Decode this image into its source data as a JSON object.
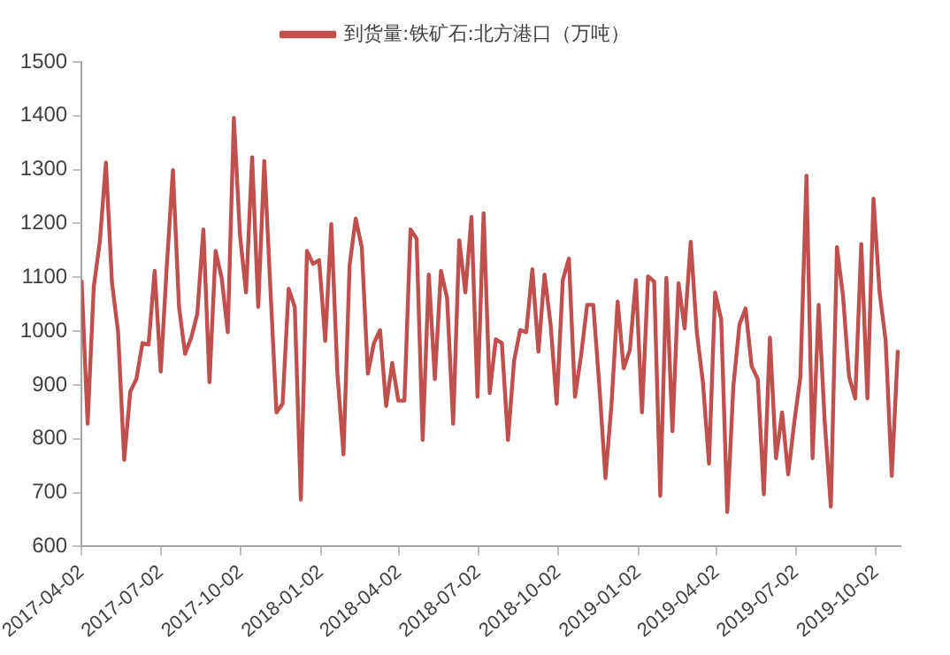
{
  "chart_data": {
    "type": "line",
    "legend": "top",
    "x": [
      "2017-04-02",
      "2017-04-09",
      "2017-04-16",
      "2017-04-23",
      "2017-04-30",
      "2017-05-07",
      "2017-05-14",
      "2017-05-21",
      "2017-05-28",
      "2017-06-04",
      "2017-06-11",
      "2017-06-18",
      "2017-06-25",
      "2017-07-02",
      "2017-07-09",
      "2017-07-16",
      "2017-07-23",
      "2017-07-30",
      "2017-08-06",
      "2017-08-13",
      "2017-08-20",
      "2017-08-27",
      "2017-09-03",
      "2017-09-10",
      "2017-09-17",
      "2017-09-24",
      "2017-10-01",
      "2017-10-08",
      "2017-10-15",
      "2017-10-22",
      "2017-10-29",
      "2017-11-05",
      "2017-11-12",
      "2017-11-19",
      "2017-11-26",
      "2017-12-03",
      "2017-12-10",
      "2017-12-17",
      "2017-12-24",
      "2017-12-31",
      "2018-01-07",
      "2018-01-14",
      "2018-01-21",
      "2018-01-28",
      "2018-02-04",
      "2018-02-11",
      "2018-02-18",
      "2018-02-25",
      "2018-03-04",
      "2018-03-11",
      "2018-03-18",
      "2018-03-25",
      "2018-04-01",
      "2018-04-08",
      "2018-04-15",
      "2018-04-22",
      "2018-04-29",
      "2018-05-06",
      "2018-05-13",
      "2018-05-20",
      "2018-05-27",
      "2018-06-03",
      "2018-06-10",
      "2018-06-17",
      "2018-06-24",
      "2018-07-01",
      "2018-07-08",
      "2018-07-15",
      "2018-07-22",
      "2018-07-29",
      "2018-08-05",
      "2018-08-12",
      "2018-08-19",
      "2018-08-26",
      "2018-09-02",
      "2018-09-09",
      "2018-09-16",
      "2018-09-23",
      "2018-09-30",
      "2018-10-07",
      "2018-10-14",
      "2018-10-21",
      "2018-10-28",
      "2018-11-04",
      "2018-11-11",
      "2018-11-18",
      "2018-11-25",
      "2018-12-02",
      "2018-12-09",
      "2018-12-16",
      "2018-12-23",
      "2018-12-30",
      "2019-01-06",
      "2019-01-13",
      "2019-01-20",
      "2019-01-27",
      "2019-02-03",
      "2019-02-10",
      "2019-02-17",
      "2019-02-24",
      "2019-03-03",
      "2019-03-10",
      "2019-03-17",
      "2019-03-24",
      "2019-03-31",
      "2019-04-07",
      "2019-04-14",
      "2019-04-21",
      "2019-04-28",
      "2019-05-05",
      "2019-05-12",
      "2019-05-19",
      "2019-05-26",
      "2019-06-02",
      "2019-06-09",
      "2019-06-16",
      "2019-06-23",
      "2019-06-30",
      "2019-07-07",
      "2019-07-14",
      "2019-07-21",
      "2019-07-28",
      "2019-08-04",
      "2019-08-11",
      "2019-08-18",
      "2019-08-25",
      "2019-09-01",
      "2019-09-08",
      "2019-09-15",
      "2019-09-22",
      "2019-09-29",
      "2019-10-06",
      "2019-10-13",
      "2019-10-20",
      "2019-10-27"
    ],
    "series": [
      {
        "name": "到货量:铁矿石:北方港口（万吨）",
        "color": "#c0504d",
        "values": [
          1095,
          828,
          1082,
          1166,
          1313,
          1089,
          998,
          761,
          888,
          911,
          978,
          975,
          1112,
          925,
          1122,
          1299,
          1045,
          958,
          988,
          1032,
          1189,
          905,
          1149,
          1099,
          998,
          1396,
          1179,
          1072,
          1323,
          1045,
          1316,
          1079,
          849,
          865,
          1079,
          1045,
          687,
          1149,
          1125,
          1132,
          982,
          1199,
          921,
          771,
          1122,
          1209,
          1156,
          921,
          978,
          1002,
          861,
          941,
          871,
          871,
          1189,
          1172,
          798,
          1105,
          911,
          1112,
          1062,
          828,
          1169,
          1072,
          1212,
          878,
          1219,
          885,
          985,
          978,
          798,
          945,
          1002,
          998,
          1115,
          962,
          1105,
          1012,
          865,
          1095,
          1135,
          878,
          955,
          1049,
          1049,
          898,
          727,
          865,
          1055,
          931,
          965,
          1095,
          849,
          1102,
          1092,
          694,
          1099,
          814,
          1089,
          1005,
          1166,
          998,
          905,
          754,
          1072,
          1022,
          664,
          898,
          1012,
          1042,
          935,
          911,
          697,
          988,
          764,
          849,
          734,
          831,
          915,
          1289,
          764,
          1049,
          831,
          674,
          1156,
          1065,
          915,
          875,
          1162,
          875,
          1246,
          1072,
          982,
          731,
          965
        ]
      }
    ],
    "xlim": [
      "2017-04-02",
      "2019-10-30"
    ],
    "xticks": [
      "2017-04-02",
      "2017-07-02",
      "2017-10-02",
      "2018-01-02",
      "2018-04-02",
      "2018-07-02",
      "2018-10-02",
      "2019-01-02",
      "2019-04-02",
      "2019-07-02",
      "2019-10-02"
    ],
    "ylim": [
      600,
      1500
    ],
    "yticks": [
      600,
      700,
      800,
      900,
      1000,
      1100,
      1200,
      1300,
      1400,
      1500
    ],
    "grid": false,
    "marker": "none",
    "line_style": "solid"
  }
}
